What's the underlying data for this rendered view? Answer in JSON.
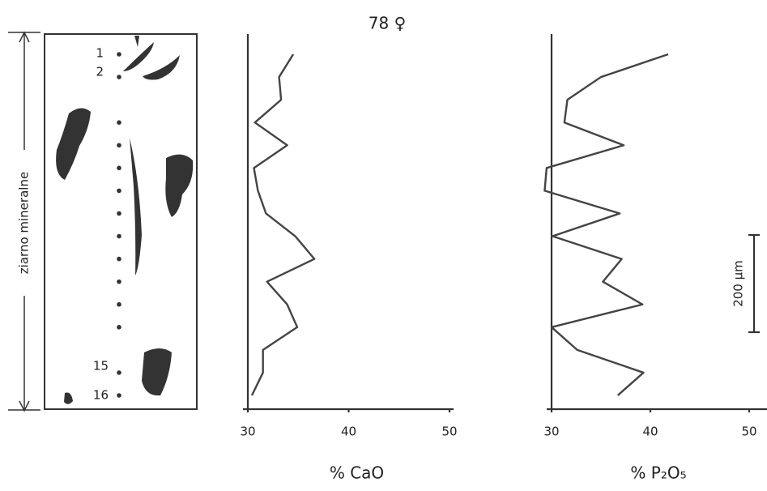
{
  "title": "78 ♀",
  "sample_panel": {
    "axis_label": "ziarno mineralne",
    "point_labels": [
      "1",
      "2",
      "15",
      "16"
    ]
  },
  "scale_label": "200 µm",
  "chart_data": [
    {
      "type": "line",
      "xlabel": "% CaO",
      "color": "#444",
      "values": [
        34.5,
        33.1,
        33.3,
        30.7,
        33.9,
        30.6,
        31.0,
        31.8,
        34.7,
        36.6,
        31.9,
        33.9,
        34.9,
        31.5,
        31.5,
        30.4
      ],
      "xlim": [
        30,
        50
      ],
      "xticks": [
        30,
        40,
        50
      ]
    },
    {
      "type": "line",
      "xlabel": "% P₂O₅",
      "color": "#444",
      "values": [
        41.8,
        35.0,
        31.6,
        31.3,
        37.3,
        29.5,
        29.3,
        36.9,
        30.1,
        37.1,
        35.2,
        39.2,
        30.0,
        32.6,
        39.3,
        36.7
      ],
      "xlim": [
        30,
        50
      ],
      "xticks": [
        30,
        40,
        50
      ]
    }
  ]
}
